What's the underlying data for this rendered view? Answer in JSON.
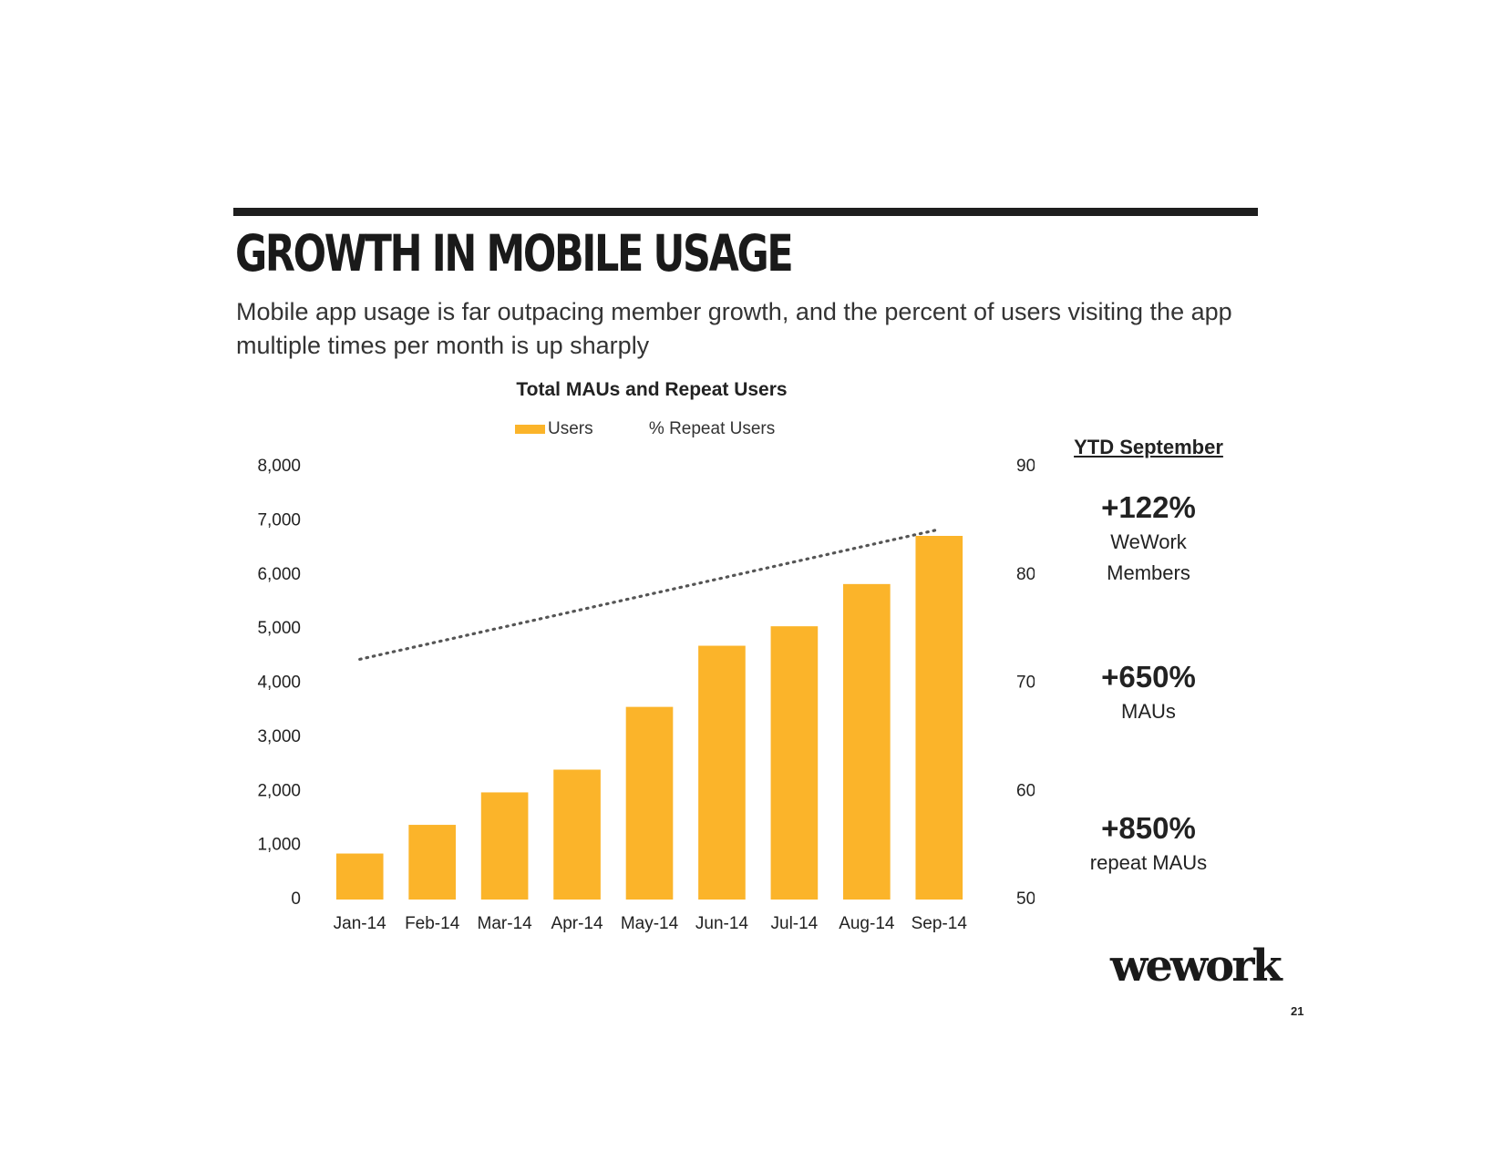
{
  "header": {
    "title": "GROWTH IN MOBILE USAGE",
    "subtitle": "Mobile app usage is far outpacing member growth, and the percent of users visiting the app multiple times per month is up sharply"
  },
  "chart_data": {
    "type": "bar",
    "title": "Total MAUs and Repeat Users",
    "categories": [
      "Jan-14",
      "Feb-14",
      "Mar-14",
      "Apr-14",
      "May-14",
      "Jun-14",
      "Jul-14",
      "Aug-14",
      "Sep-14"
    ],
    "series": [
      {
        "name": "Users",
        "type": "bar",
        "axis": "left",
        "values": [
          850,
          1380,
          1980,
          2400,
          3560,
          4690,
          5050,
          5830,
          6720
        ]
      },
      {
        "name": "% Repeat Users",
        "type": "line",
        "style": "dotted",
        "axis": "right",
        "values": [
          72.2,
          73.7,
          75.2,
          76.7,
          78.2,
          79.7,
          81.2,
          82.7,
          84.2
        ]
      }
    ],
    "y_left": {
      "min": 0,
      "max": 8000,
      "ticks": [
        "0",
        "1,000",
        "2,000",
        "3,000",
        "4,000",
        "5,000",
        "6,000",
        "7,000",
        "8,000"
      ]
    },
    "y_right": {
      "min": 50,
      "max": 90,
      "ticks": [
        "50%",
        "60%",
        "70%",
        "80%",
        "90%"
      ]
    },
    "grid": false,
    "legend_position": "top",
    "colors": {
      "bar": "#fbb42a",
      "line": "#777777"
    }
  },
  "ytd": {
    "heading": "YTD September",
    "stats": [
      {
        "value": "+122%",
        "label_lines": [
          "WeWork",
          "Members"
        ]
      },
      {
        "value": "+650%",
        "label_lines": [
          "MAUs"
        ]
      },
      {
        "value": "+850%",
        "label_lines": [
          "repeat MAUs"
        ]
      }
    ]
  },
  "footer": {
    "logo_text": "wework",
    "page_number": "21"
  }
}
